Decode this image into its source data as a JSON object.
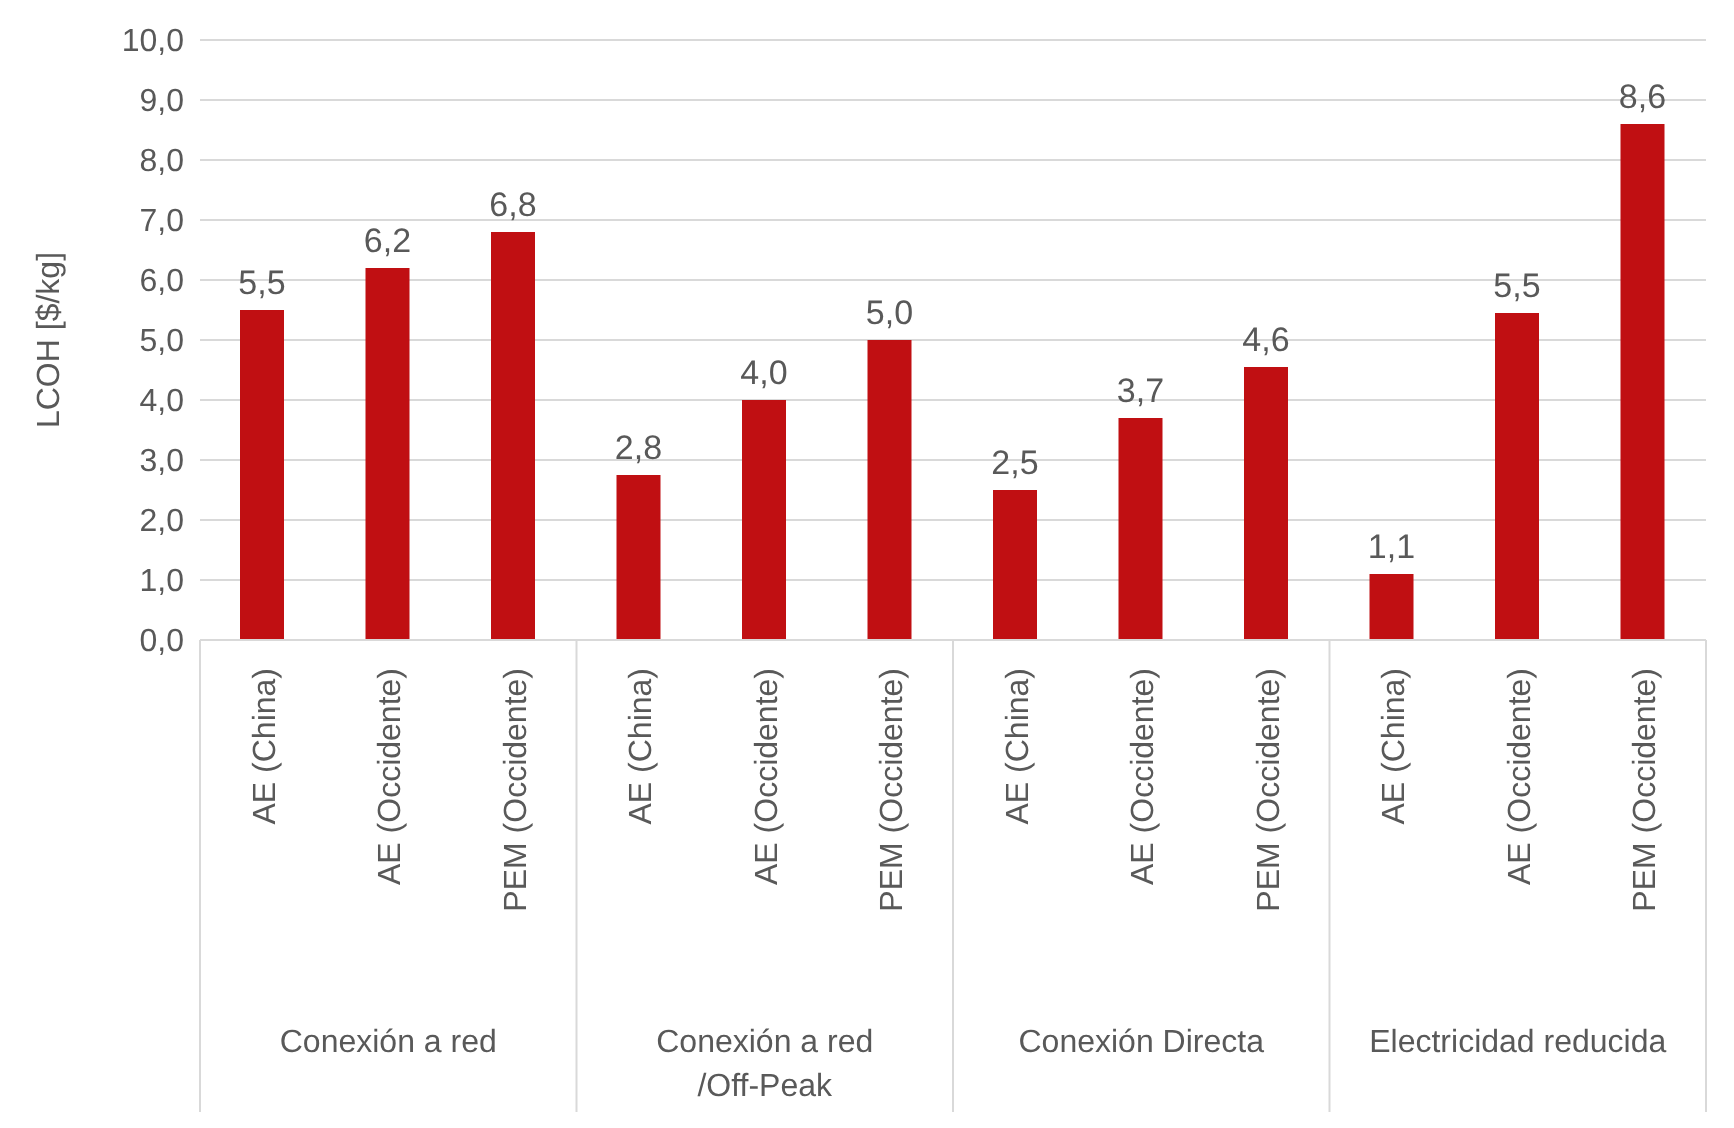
{
  "chart_data": {
    "type": "bar",
    "ylabel": "LCOH [$/kg]",
    "categories": [
      "AE (China)",
      "AE (Occidente)",
      "PEM (Occidente)",
      "AE (China)",
      "AE (Occidente)",
      "PEM (Occidente)",
      "AE (China)",
      "AE (Occidente)",
      "PEM (Occidente)",
      "AE (China)",
      "AE (Occidente)",
      "PEM (Occidente)"
    ],
    "values": [
      5.5,
      6.2,
      6.8,
      2.75,
      4.0,
      5.0,
      2.5,
      3.7,
      4.55,
      1.1,
      5.45,
      8.6
    ],
    "value_labels": [
      "5,5",
      "6,2",
      "6,8",
      "2,8",
      "4,0",
      "5,0",
      "2,5",
      "3,7",
      "4,6",
      "1,1",
      "5,5",
      "8,6"
    ],
    "color": "#c00f12",
    "ylim": [
      0,
      10
    ],
    "yticks": [
      {
        "value": 0,
        "label": "0,0"
      },
      {
        "value": 1,
        "label": "1,0"
      },
      {
        "value": 2,
        "label": "2,0"
      },
      {
        "value": 3,
        "label": "3,0"
      },
      {
        "value": 4,
        "label": "4,0"
      },
      {
        "value": 5,
        "label": "5,0"
      },
      {
        "value": 6,
        "label": "6,0"
      },
      {
        "value": 7,
        "label": "7,0"
      },
      {
        "value": 8,
        "label": "8,0"
      },
      {
        "value": 9,
        "label": "9,0"
      },
      {
        "value": 10,
        "label": "10,0"
      }
    ],
    "annotations": [
      "Conexión a red",
      "Conexión a red /Off-Peak",
      "Conexión Directa",
      "Electricidad reducida"
    ],
    "grid": "y",
    "legend": false
  }
}
